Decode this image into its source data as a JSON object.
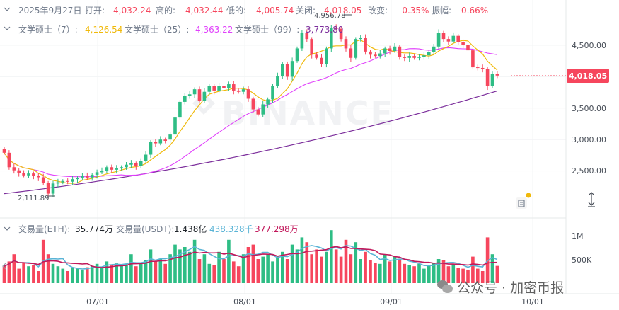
{
  "header": {
    "date": "2025年9月27日",
    "open_label": "打开:",
    "open": "4,032.24",
    "high_label": "高的:",
    "high": "4,032.44",
    "low_label": "低的:",
    "low": "4,005.74",
    "close_label": "关闭:",
    "close": "4,018.05",
    "change_label": "改变:",
    "change": "-0.35%",
    "amp_label": "振幅:",
    "amp": "0.66%"
  },
  "ma_legend": {
    "ma7_label": "文学硕士（7）:",
    "ma7": "4,126.54",
    "ma25_label": "文学硕士（25）:",
    "ma25": "4,363.22",
    "ma99_label": "文学硕士（99）:",
    "ma99": "3,773.80"
  },
  "volume_legend": {
    "eth_label": "交易量(ETH):",
    "eth": "35.774万",
    "usdt_label": "交易量(USDT):",
    "usdt": "1.438亿",
    "ma1": "438.328千",
    "ma2": "377.298万"
  },
  "watermark": "BINANCE",
  "brand_text": "公众号 · 加密币报",
  "colors": {
    "up": "#2ebd85",
    "down": "#f6465d",
    "ma7": "#f0b90b",
    "ma25": "#e040fb",
    "ma99": "#7b2d9b",
    "vma1": "#5ab4d6",
    "vma2": "#c2185b"
  },
  "chart_data": {
    "type": "candlestick",
    "price_axis": {
      "ticks": [
        4500,
        4000,
        3500,
        3000,
        2500
      ],
      "tick_labels": [
        "4,500.00",
        "3,500.00",
        "3,000.00",
        "2,500.00"
      ],
      "last_price_label": "4,018.05"
    },
    "volume_axis": {
      "ticks": [
        1000000,
        500000
      ],
      "tick_labels": [
        "1M",
        "500K"
      ]
    },
    "x_tick_labels": [
      "07/01",
      "08/01",
      "09/01",
      "10/01"
    ],
    "annotations": {
      "max_label": "4,956.78",
      "min_label": "2,111.89"
    },
    "candles": [
      [
        2855,
        2790
      ],
      [
        2790,
        2560
      ],
      [
        2560,
        2510
      ],
      [
        2510,
        2470
      ],
      [
        2470,
        2430
      ],
      [
        2430,
        2460
      ],
      [
        2460,
        2420
      ],
      [
        2420,
        2400
      ],
      [
        2400,
        2310
      ],
      [
        2310,
        2140
      ],
      [
        2140,
        2300
      ],
      [
        2300,
        2320
      ],
      [
        2320,
        2340
      ],
      [
        2340,
        2330
      ],
      [
        2330,
        2370
      ],
      [
        2370,
        2385
      ],
      [
        2385,
        2420
      ],
      [
        2420,
        2395
      ],
      [
        2395,
        2440
      ],
      [
        2440,
        2480
      ],
      [
        2480,
        2500
      ],
      [
        2500,
        2560
      ],
      [
        2560,
        2520
      ],
      [
        2520,
        2540
      ],
      [
        2540,
        2560
      ],
      [
        2560,
        2600
      ],
      [
        2600,
        2620
      ],
      [
        2620,
        2580
      ],
      [
        2580,
        2660
      ],
      [
        2660,
        2760
      ],
      [
        2760,
        2960
      ],
      [
        2960,
        2940
      ],
      [
        2940,
        3000
      ],
      [
        3000,
        2980
      ],
      [
        3000,
        3080
      ],
      [
        3080,
        3350
      ],
      [
        3350,
        3600
      ],
      [
        3600,
        3700
      ],
      [
        3700,
        3720
      ],
      [
        3720,
        3800
      ],
      [
        3800,
        3620
      ],
      [
        3620,
        3760
      ],
      [
        3760,
        3850
      ],
      [
        3850,
        3780
      ],
      [
        3780,
        3850
      ],
      [
        3850,
        3820
      ],
      [
        3820,
        3880
      ],
      [
        3880,
        3780
      ],
      [
        3780,
        3760
      ],
      [
        3760,
        3800
      ],
      [
        3800,
        3650
      ],
      [
        3650,
        3480
      ],
      [
        3480,
        3400
      ],
      [
        3400,
        3560
      ],
      [
        3560,
        3640
      ],
      [
        3640,
        3850
      ],
      [
        3850,
        4010
      ],
      [
        4010,
        4200
      ],
      [
        4200,
        4000
      ],
      [
        4000,
        4250
      ],
      [
        4250,
        4450
      ],
      [
        4450,
        4700
      ],
      [
        4700,
        4600
      ],
      [
        4600,
        4350
      ],
      [
        4350,
        4300
      ],
      [
        4300,
        4200
      ],
      [
        4200,
        4450
      ],
      [
        4450,
        4780
      ],
      [
        4780,
        4760
      ],
      [
        4760,
        4600
      ],
      [
        4600,
        4450
      ],
      [
        4450,
        4300
      ],
      [
        4300,
        4600
      ],
      [
        4600,
        4620
      ],
      [
        4620,
        4400
      ],
      [
        4400,
        4350
      ],
      [
        4350,
        4330
      ],
      [
        4330,
        4370
      ],
      [
        4370,
        4450
      ],
      [
        4450,
        4410
      ],
      [
        4410,
        4480
      ],
      [
        4480,
        4310
      ],
      [
        4310,
        4300
      ],
      [
        4300,
        4330
      ],
      [
        4330,
        4300
      ],
      [
        4300,
        4320
      ],
      [
        4320,
        4340
      ],
      [
        4340,
        4390
      ],
      [
        4390,
        4480
      ],
      [
        4480,
        4700
      ],
      [
        4700,
        4600
      ],
      [
        4600,
        4560
      ],
      [
        4560,
        4650
      ],
      [
        4650,
        4550
      ],
      [
        4550,
        4500
      ],
      [
        4500,
        4420
      ],
      [
        4420,
        4150
      ],
      [
        4150,
        4140
      ],
      [
        4140,
        4120
      ],
      [
        4120,
        3850
      ],
      [
        3850,
        4040
      ],
      [
        4040,
        4018
      ]
    ],
    "volume": [
      350000,
      450000,
      600000,
      300000,
      420000,
      350000,
      380000,
      250000,
      900000,
      600000,
      400000,
      350000,
      300000,
      250000,
      330000,
      310000,
      280000,
      330000,
      360000,
      400000,
      320000,
      450000,
      380000,
      410000,
      370000,
      390000,
      600000,
      350000,
      400000,
      480000,
      700000,
      450000,
      500000,
      400000,
      600000,
      800000,
      700000,
      750000,
      650000,
      900000,
      500000,
      600000,
      400000,
      380000,
      650000,
      500000,
      900000,
      450000,
      350000,
      600000,
      750000,
      800000,
      500000,
      550000,
      600000,
      450000,
      550000,
      650000,
      500000,
      800000,
      700000,
      950000,
      850000,
      600000,
      700000,
      550000,
      650000,
      1100000,
      700000,
      550000,
      900000,
      600000,
      850000,
      500000,
      650000,
      480000,
      420000,
      400000,
      600000,
      450000,
      550000,
      500000,
      400000,
      380000,
      350000,
      400000,
      300000,
      380000,
      420000,
      500000,
      480000,
      350000,
      400000,
      320000,
      300000,
      280000,
      550000,
      300000,
      250000,
      950000,
      600000,
      358000
    ]
  }
}
